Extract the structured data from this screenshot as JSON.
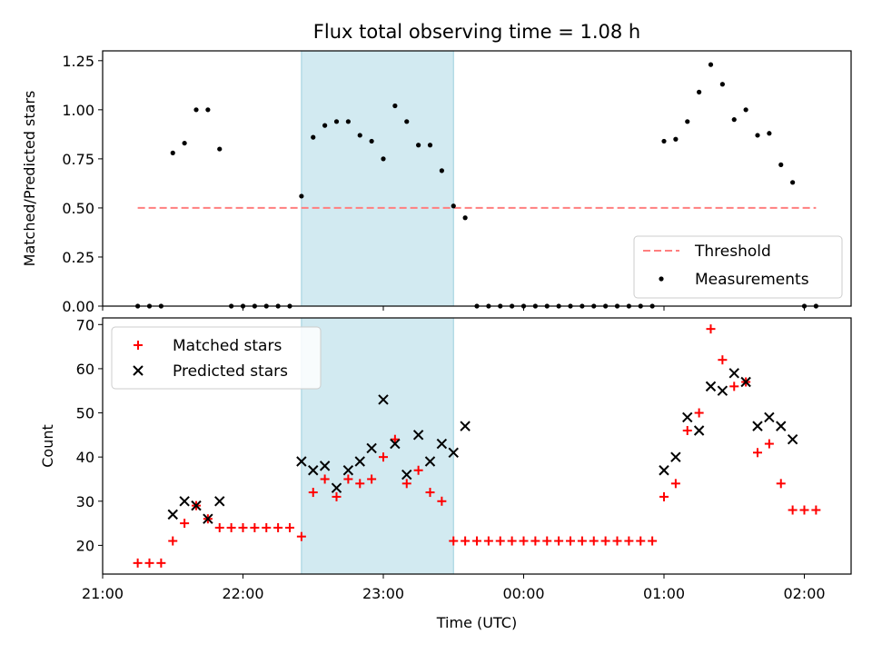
{
  "colors": {
    "shade": "#add8e6",
    "threshold": "#ff7f7f",
    "measurement": "#000000",
    "matched": "#ff0000",
    "predicted": "#000000"
  },
  "chart_data": [
    {
      "type": "scatter",
      "title": "Flux total observing time = 1.08 h",
      "xlabel": "",
      "ylabel": "Matched/Predicted stars",
      "ylim": [
        0,
        1.3
      ],
      "y_ticks": [
        "0.00",
        "0.25",
        "0.50",
        "0.75",
        "1.00",
        "1.25"
      ],
      "shaded_interval": [
        "22:25",
        "23:30"
      ],
      "legend": {
        "placement": "lower-right",
        "entries": [
          "Threshold",
          "Measurements"
        ]
      },
      "threshold": {
        "name": "Threshold",
        "value": 0.5,
        "x_range": [
          "21:15",
          "02:05"
        ],
        "style": "dashed"
      },
      "series": [
        {
          "name": "Measurements",
          "x": [
            "21:15",
            "21:20",
            "21:25",
            "21:30",
            "21:35",
            "21:40",
            "21:45",
            "21:50",
            "21:55",
            "22:00",
            "22:05",
            "22:10",
            "22:15",
            "22:20",
            "22:25",
            "22:30",
            "22:35",
            "22:40",
            "22:45",
            "22:50",
            "22:55",
            "23:00",
            "23:05",
            "23:10",
            "23:15",
            "23:20",
            "23:25",
            "23:30",
            "23:35",
            "23:40",
            "23:45",
            "23:50",
            "23:55",
            "00:00",
            "00:05",
            "00:10",
            "00:15",
            "00:20",
            "00:25",
            "00:30",
            "00:35",
            "00:40",
            "00:45",
            "00:50",
            "00:55",
            "01:00",
            "01:05",
            "01:10",
            "01:15",
            "01:20",
            "01:25",
            "01:30",
            "01:35",
            "01:40",
            "01:45",
            "01:50",
            "01:55",
            "02:00",
            "02:05"
          ],
          "y": [
            0,
            0,
            0,
            0.78,
            0.83,
            1.0,
            1.0,
            0.8,
            0,
            0,
            0,
            0,
            0,
            0,
            0.56,
            0.86,
            0.92,
            0.94,
            0.94,
            0.87,
            0.84,
            0.75,
            1.02,
            0.94,
            0.82,
            0.82,
            0.69,
            0.51,
            0.45,
            0,
            0,
            0,
            0,
            0,
            0,
            0,
            0,
            0,
            0,
            0,
            0,
            0,
            0,
            0,
            0,
            0.84,
            0.85,
            0.94,
            1.09,
            1.23,
            1.13,
            0.95,
            1.0,
            0.87,
            0.88,
            0.72,
            0.63,
            0,
            0
          ]
        }
      ]
    },
    {
      "type": "scatter",
      "title": "",
      "xlabel": "Time (UTC)",
      "ylabel": "Count",
      "ylim": [
        13.5,
        71.5
      ],
      "y_ticks": [
        "20",
        "30",
        "40",
        "50",
        "60",
        "70"
      ],
      "x_ticks": [
        "21:00",
        "22:00",
        "23:00",
        "00:00",
        "01:00",
        "02:00"
      ],
      "xlim": [
        "21:00",
        "02:20"
      ],
      "shaded_interval": [
        "22:25",
        "23:30"
      ],
      "legend": {
        "placement": "upper-left",
        "entries": [
          "Matched stars",
          "Predicted stars"
        ]
      },
      "series": [
        {
          "name": "Matched stars",
          "x": [
            "21:15",
            "21:20",
            "21:25",
            "21:30",
            "21:35",
            "21:40",
            "21:45",
            "21:50",
            "21:55",
            "22:00",
            "22:05",
            "22:10",
            "22:15",
            "22:20",
            "22:25",
            "22:30",
            "22:35",
            "22:40",
            "22:45",
            "22:50",
            "22:55",
            "23:00",
            "23:05",
            "23:10",
            "23:15",
            "23:20",
            "23:25",
            "23:30",
            "23:35",
            "23:40",
            "23:45",
            "23:50",
            "23:55",
            "00:00",
            "00:05",
            "00:10",
            "00:15",
            "00:20",
            "00:25",
            "00:30",
            "00:35",
            "00:40",
            "00:45",
            "00:50",
            "00:55",
            "01:00",
            "01:05",
            "01:10",
            "01:15",
            "01:20",
            "01:25",
            "01:30",
            "01:35",
            "01:40",
            "01:45",
            "01:50",
            "01:55",
            "02:00",
            "02:05"
          ],
          "y": [
            16,
            16,
            16,
            21,
            25,
            29,
            26,
            24,
            24,
            24,
            24,
            24,
            24,
            24,
            22,
            32,
            35,
            31,
            35,
            34,
            35,
            40,
            44,
            34,
            37,
            32,
            30,
            21,
            21,
            21,
            21,
            21,
            21,
            21,
            21,
            21,
            21,
            21,
            21,
            21,
            21,
            21,
            21,
            21,
            21,
            31,
            34,
            46,
            50,
            69,
            62,
            56,
            57,
            41,
            43,
            34,
            28,
            28,
            28
          ]
        },
        {
          "name": "Predicted stars",
          "x": [
            "21:30",
            "21:35",
            "21:40",
            "21:45",
            "21:50",
            "22:25",
            "22:30",
            "22:35",
            "22:40",
            "22:45",
            "22:50",
            "22:55",
            "23:00",
            "23:05",
            "23:10",
            "23:15",
            "23:20",
            "23:25",
            "23:30",
            "23:35",
            "01:00",
            "01:05",
            "01:10",
            "01:15",
            "01:20",
            "01:25",
            "01:30",
            "01:35",
            "01:40",
            "01:45",
            "01:50",
            "01:55"
          ],
          "y": [
            27,
            30,
            29,
            26,
            30,
            39,
            37,
            38,
            33,
            37,
            39,
            42,
            53,
            43,
            36,
            45,
            39,
            43,
            41,
            47,
            37,
            40,
            49,
            46,
            56,
            55,
            59,
            57,
            47,
            49,
            47,
            44
          ]
        }
      ]
    }
  ]
}
